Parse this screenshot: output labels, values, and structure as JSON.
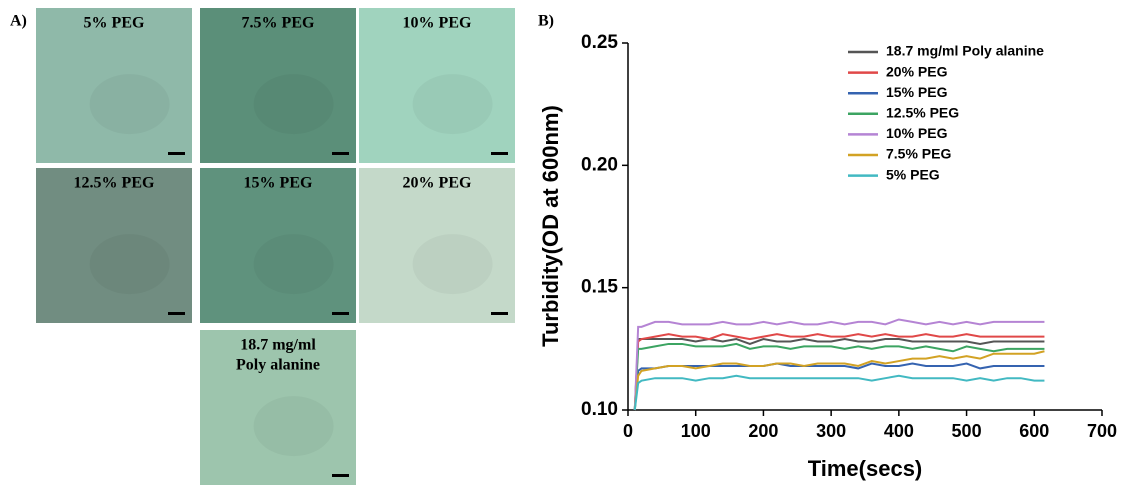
{
  "panel_a": {
    "label": "A)",
    "tiles": [
      {
        "lines": [
          "5% PEG"
        ],
        "color": "#8fb9a9"
      },
      {
        "lines": [
          "7.5% PEG"
        ],
        "color": "#5b8f79"
      },
      {
        "lines": [
          "10% PEG"
        ],
        "color": "#a0d3be"
      },
      {
        "lines": [
          "12.5% PEG"
        ],
        "color": "#718d81"
      },
      {
        "lines": [
          "15% PEG"
        ],
        "color": "#5f927d"
      },
      {
        "lines": [
          "20% PEG"
        ],
        "color": "#c4d9c9"
      },
      {
        "lines": [
          "18.7 mg/ml",
          "Poly alanine"
        ],
        "color": "#9dc5ad"
      }
    ]
  },
  "chart_data": {
    "type": "line",
    "panel_label": "B)",
    "x_label": "Time(secs)",
    "y_label": "Turbidity(OD at 600nm)",
    "xlim": [
      0,
      700
    ],
    "xticks": [
      0,
      100,
      200,
      300,
      400,
      500,
      600,
      700
    ],
    "ylim": [
      0.1,
      0.25
    ],
    "yticks": [
      {
        "value": 0.1,
        "label": "0.10"
      },
      0.15,
      {
        "value": 0.2,
        "label": "0.20"
      },
      0.25
    ],
    "legend": "upper right",
    "x": [
      10,
      15,
      20,
      40,
      60,
      80,
      100,
      120,
      140,
      160,
      180,
      200,
      220,
      240,
      260,
      280,
      300,
      320,
      340,
      360,
      380,
      400,
      420,
      440,
      460,
      480,
      500,
      520,
      540,
      560,
      580,
      600,
      615
    ],
    "series": [
      {
        "name": "18.7 mg/ml Poly alanine",
        "color": "#555555",
        "values": [
          0.1,
          0.129,
          0.129,
          0.129,
          0.129,
          0.129,
          0.128,
          0.129,
          0.128,
          0.129,
          0.127,
          0.129,
          0.128,
          0.128,
          0.129,
          0.128,
          0.128,
          0.129,
          0.128,
          0.128,
          0.129,
          0.129,
          0.128,
          0.128,
          0.128,
          0.128,
          0.128,
          0.127,
          0.128,
          0.128,
          0.128,
          0.128,
          0.128
        ]
      },
      {
        "name": "20% PEG",
        "color": "#e04848",
        "values": [
          0.1,
          0.128,
          0.129,
          0.13,
          0.131,
          0.13,
          0.13,
          0.129,
          0.131,
          0.13,
          0.129,
          0.13,
          0.131,
          0.13,
          0.13,
          0.131,
          0.13,
          0.13,
          0.131,
          0.13,
          0.131,
          0.13,
          0.13,
          0.131,
          0.13,
          0.13,
          0.131,
          0.13,
          0.13,
          0.13,
          0.13,
          0.13,
          0.13
        ]
      },
      {
        "name": "15% PEG",
        "color": "#3563b0",
        "values": [
          0.1,
          0.116,
          0.117,
          0.117,
          0.118,
          0.118,
          0.118,
          0.118,
          0.118,
          0.118,
          0.118,
          0.118,
          0.119,
          0.118,
          0.118,
          0.118,
          0.118,
          0.118,
          0.117,
          0.119,
          0.118,
          0.118,
          0.119,
          0.118,
          0.118,
          0.118,
          0.119,
          0.117,
          0.118,
          0.118,
          0.118,
          0.118,
          0.118
        ]
      },
      {
        "name": "12.5% PEG",
        "color": "#3ca462",
        "values": [
          0.1,
          0.125,
          0.125,
          0.126,
          0.127,
          0.127,
          0.126,
          0.126,
          0.126,
          0.127,
          0.125,
          0.126,
          0.126,
          0.125,
          0.126,
          0.126,
          0.126,
          0.125,
          0.126,
          0.125,
          0.126,
          0.126,
          0.125,
          0.126,
          0.125,
          0.124,
          0.126,
          0.125,
          0.124,
          0.125,
          0.125,
          0.125,
          0.125
        ]
      },
      {
        "name": "10% PEG",
        "color": "#b584d4",
        "values": [
          0.1,
          0.134,
          0.134,
          0.136,
          0.136,
          0.135,
          0.135,
          0.135,
          0.136,
          0.135,
          0.135,
          0.136,
          0.135,
          0.136,
          0.135,
          0.135,
          0.136,
          0.135,
          0.136,
          0.136,
          0.135,
          0.137,
          0.136,
          0.135,
          0.136,
          0.135,
          0.136,
          0.135,
          0.136,
          0.136,
          0.136,
          0.136,
          0.136
        ]
      },
      {
        "name": "7.5% PEG",
        "color": "#d2a224",
        "values": [
          0.1,
          0.114,
          0.116,
          0.117,
          0.118,
          0.118,
          0.117,
          0.118,
          0.119,
          0.119,
          0.118,
          0.118,
          0.119,
          0.119,
          0.118,
          0.119,
          0.119,
          0.119,
          0.118,
          0.12,
          0.119,
          0.12,
          0.121,
          0.121,
          0.122,
          0.121,
          0.122,
          0.121,
          0.123,
          0.123,
          0.123,
          0.123,
          0.124
        ]
      },
      {
        "name": "5% PEG",
        "color": "#42b9c2",
        "values": [
          0.1,
          0.111,
          0.112,
          0.113,
          0.113,
          0.113,
          0.112,
          0.113,
          0.113,
          0.114,
          0.113,
          0.113,
          0.113,
          0.113,
          0.113,
          0.113,
          0.113,
          0.113,
          0.113,
          0.112,
          0.113,
          0.114,
          0.113,
          0.113,
          0.113,
          0.113,
          0.112,
          0.113,
          0.112,
          0.113,
          0.113,
          0.112,
          0.112
        ]
      }
    ]
  }
}
